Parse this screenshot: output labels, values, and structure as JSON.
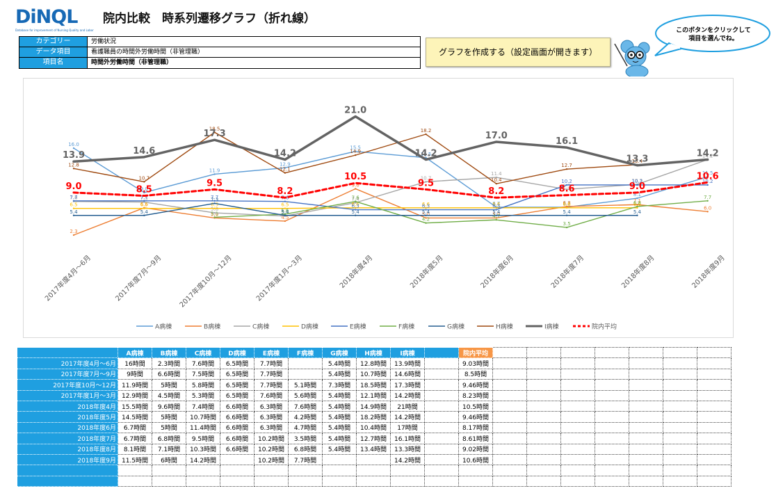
{
  "header": {
    "logo": "DiNQL",
    "logo_sub": "Database for improvement of Nursing Quality and Labor",
    "title": "院内比較　時系列遷移グラフ（折れ線）"
  },
  "info": [
    {
      "key": "カテゴリー",
      "value": "労働状況"
    },
    {
      "key": "データ項目",
      "value": "看護職員の時間外労働時間（非管理職）"
    },
    {
      "key": "項目名",
      "value": "時間外労働時間（非管理職）"
    }
  ],
  "create_button": "グラフを作成する（設定画面が開きます）",
  "bubble": "このボタンをクリックして\n項目を選んでね。",
  "chart_data": {
    "type": "line",
    "categories": [
      "2017年度4月～6月",
      "2017年度7月～9月",
      "2017年度10月～12月",
      "2017年度1月～3月",
      "2018年度4月",
      "2018年度5月",
      "2018年度6月",
      "2018年度7月",
      "2018年度8月",
      "2018年度9月"
    ],
    "ylim": [
      0,
      25
    ],
    "series": [
      {
        "name": "A病棟",
        "color": "#5b9bd5",
        "width": 1.4,
        "values": [
          16,
          9,
          11.9,
          12.9,
          15.5,
          14.5,
          6.7,
          6.7,
          8.1,
          11.5
        ]
      },
      {
        "name": "B病棟",
        "color": "#ed7d31",
        "width": 1.4,
        "values": [
          2.3,
          6.6,
          5,
          4.5,
          9.6,
          5,
          5,
          6.8,
          7.1,
          6
        ]
      },
      {
        "name": "C病棟",
        "color": "#a5a5a5",
        "width": 1.4,
        "values": [
          7.6,
          7.5,
          5.8,
          5.3,
          7.4,
          10.7,
          11.4,
          9.5,
          10.3,
          14.2
        ]
      },
      {
        "name": "D病棟",
        "color": "#ffc000",
        "width": 1.4,
        "values": [
          6.5,
          6.5,
          6.5,
          6.5,
          6.6,
          6.6,
          6.6,
          6.6,
          6.6,
          null
        ]
      },
      {
        "name": "E病棟",
        "color": "#4472c4",
        "width": 1.4,
        "values": [
          7.7,
          7.7,
          7.7,
          7.6,
          6.3,
          6.3,
          6.3,
          10.2,
          10.2,
          10.2
        ]
      },
      {
        "name": "F病棟",
        "color": "#70ad47",
        "width": 1.4,
        "values": [
          null,
          null,
          5.1,
          5.6,
          7.6,
          4.2,
          4.7,
          3.5,
          6.8,
          7.7
        ]
      },
      {
        "name": "G病棟",
        "color": "#255e91",
        "width": 1.4,
        "values": [
          5.4,
          5.4,
          7.3,
          5.4,
          5.4,
          5.4,
          5.4,
          5.4,
          5.4,
          null
        ]
      },
      {
        "name": "H病棟",
        "color": "#9e480e",
        "width": 1.4,
        "values": [
          12.8,
          10.7,
          18.5,
          12.1,
          14.9,
          18.2,
          10.4,
          12.7,
          13.4,
          null
        ]
      },
      {
        "name": "I病棟",
        "color": "#636363",
        "width": 3.5,
        "bold": true,
        "values": [
          13.9,
          14.6,
          17.3,
          14.2,
          21,
          14.2,
          17,
          16.1,
          13.3,
          14.2
        ]
      },
      {
        "name": "院内平均",
        "color": "#ff0000",
        "width": 3,
        "dash": true,
        "bold": true,
        "values": [
          9.0,
          8.5,
          9.5,
          8.2,
          10.5,
          9.5,
          8.2,
          8.6,
          9.0,
          10.6
        ]
      }
    ]
  },
  "table": {
    "headers": [
      "A病棟",
      "B病棟",
      "C病棟",
      "D病棟",
      "E病棟",
      "F病棟",
      "G病棟",
      "H病棟",
      "I病棟",
      "",
      "院内平均"
    ],
    "rows": [
      {
        "label": "2017年度4月～6月",
        "cells": [
          "16時間",
          "2.3時間",
          "7.6時間",
          "6.5時間",
          "7.7時間",
          "",
          "5.4時間",
          "12.8時間",
          "13.9時間",
          "",
          "9.03時間"
        ]
      },
      {
        "label": "2017年度7月～9月",
        "cells": [
          "9時間",
          "6.6時間",
          "7.5時間",
          "6.5時間",
          "7.7時間",
          "",
          "5.4時間",
          "10.7時間",
          "14.6時間",
          "",
          "8.5時間"
        ]
      },
      {
        "label": "2017年度10月～12月",
        "cells": [
          "11.9時間",
          "5時間",
          "5.8時間",
          "6.5時間",
          "7.7時間",
          "5.1時間",
          "7.3時間",
          "18.5時間",
          "17.3時間",
          "",
          "9.46時間"
        ]
      },
      {
        "label": "2017年度1月～3月",
        "cells": [
          "12.9時間",
          "4.5時間",
          "5.3時間",
          "6.5時間",
          "7.6時間",
          "5.6時間",
          "5.4時間",
          "12.1時間",
          "14.2時間",
          "",
          "8.23時間"
        ]
      },
      {
        "label": "2018年度4月",
        "cells": [
          "15.5時間",
          "9.6時間",
          "7.4時間",
          "6.6時間",
          "6.3時間",
          "7.6時間",
          "5.4時間",
          "14.9時間",
          "21時間",
          "",
          "10.5時間"
        ]
      },
      {
        "label": "2018年度5月",
        "cells": [
          "14.5時間",
          "5時間",
          "10.7時間",
          "6.6時間",
          "6.3時間",
          "4.2時間",
          "5.4時間",
          "18.2時間",
          "14.2時間",
          "",
          "9.46時間"
        ]
      },
      {
        "label": "2018年度6月",
        "cells": [
          "6.7時間",
          "5時間",
          "11.4時間",
          "6.6時間",
          "6.3時間",
          "4.7時間",
          "5.4時間",
          "10.4時間",
          "17時間",
          "",
          "8.17時間"
        ]
      },
      {
        "label": "2018年度7月",
        "cells": [
          "6.7時間",
          "6.8時間",
          "9.5時間",
          "6.6時間",
          "10.2時間",
          "3.5時間",
          "5.4時間",
          "12.7時間",
          "16.1時間",
          "",
          "8.61時間"
        ]
      },
      {
        "label": "2018年度8月",
        "cells": [
          "8.1時間",
          "7.1時間",
          "10.3時間",
          "6.6時間",
          "10.2時間",
          "6.8時間",
          "5.4時間",
          "13.4時間",
          "13.3時間",
          "",
          "9.02時間"
        ]
      },
      {
        "label": "2018年度9月",
        "cells": [
          "11.5時間",
          "6時間",
          "14.2時間",
          "",
          "10.2時間",
          "7.7時間",
          "",
          "",
          "14.2時間",
          "",
          "10.6時間"
        ]
      },
      {
        "label": "",
        "cells": [
          "",
          "",
          "",
          "",
          "",
          "",
          "",
          "",
          "",
          "",
          ""
        ]
      },
      {
        "label": "",
        "cells": [
          "",
          "",
          "",
          "",
          "",
          "",
          "",
          "",
          "",
          "",
          ""
        ]
      }
    ]
  }
}
